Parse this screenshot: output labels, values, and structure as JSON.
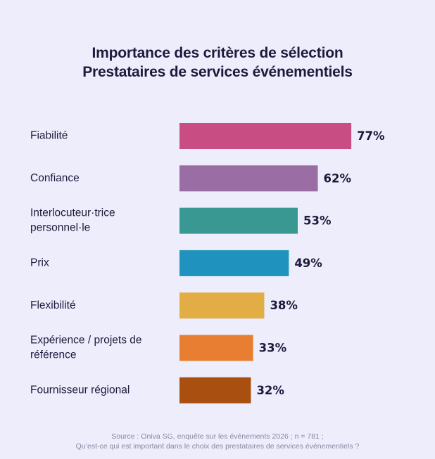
{
  "title": [
    "Importance des critères de sélection",
    "Prestataires de services événementiels"
  ],
  "source": [
    "Source : Oniva SG, enquête sur les événements 2026 ; n = 781 ;",
    "Qu’est-ce qui est important dans le choix des prestataires de services événementiels ?"
  ],
  "chart_data": {
    "type": "bar",
    "orientation": "horizontal",
    "title": "Importance des critères de sélection — Prestataires de services événementiels",
    "categories": [
      [
        "Fiabilité"
      ],
      [
        "Confiance"
      ],
      [
        "Interlocuteur·trice",
        "personnel·le"
      ],
      [
        "Prix"
      ],
      [
        "Flexibilité"
      ],
      [
        "Expérience / projets de",
        "référence"
      ],
      [
        "Fournisseur régional"
      ]
    ],
    "values": [
      77,
      62,
      53,
      49,
      38,
      33,
      32
    ],
    "value_labels": [
      "77%",
      "62%",
      "53%",
      "49%",
      "38%",
      "33%",
      "32%"
    ],
    "colors": [
      "#c84d82",
      "#9a6da5",
      "#3a9892",
      "#1f93be",
      "#e2ad45",
      "#e77e31",
      "#a94f10"
    ],
    "unit": "%",
    "xlim": [
      0,
      100
    ],
    "grid": false,
    "legend": "none"
  }
}
